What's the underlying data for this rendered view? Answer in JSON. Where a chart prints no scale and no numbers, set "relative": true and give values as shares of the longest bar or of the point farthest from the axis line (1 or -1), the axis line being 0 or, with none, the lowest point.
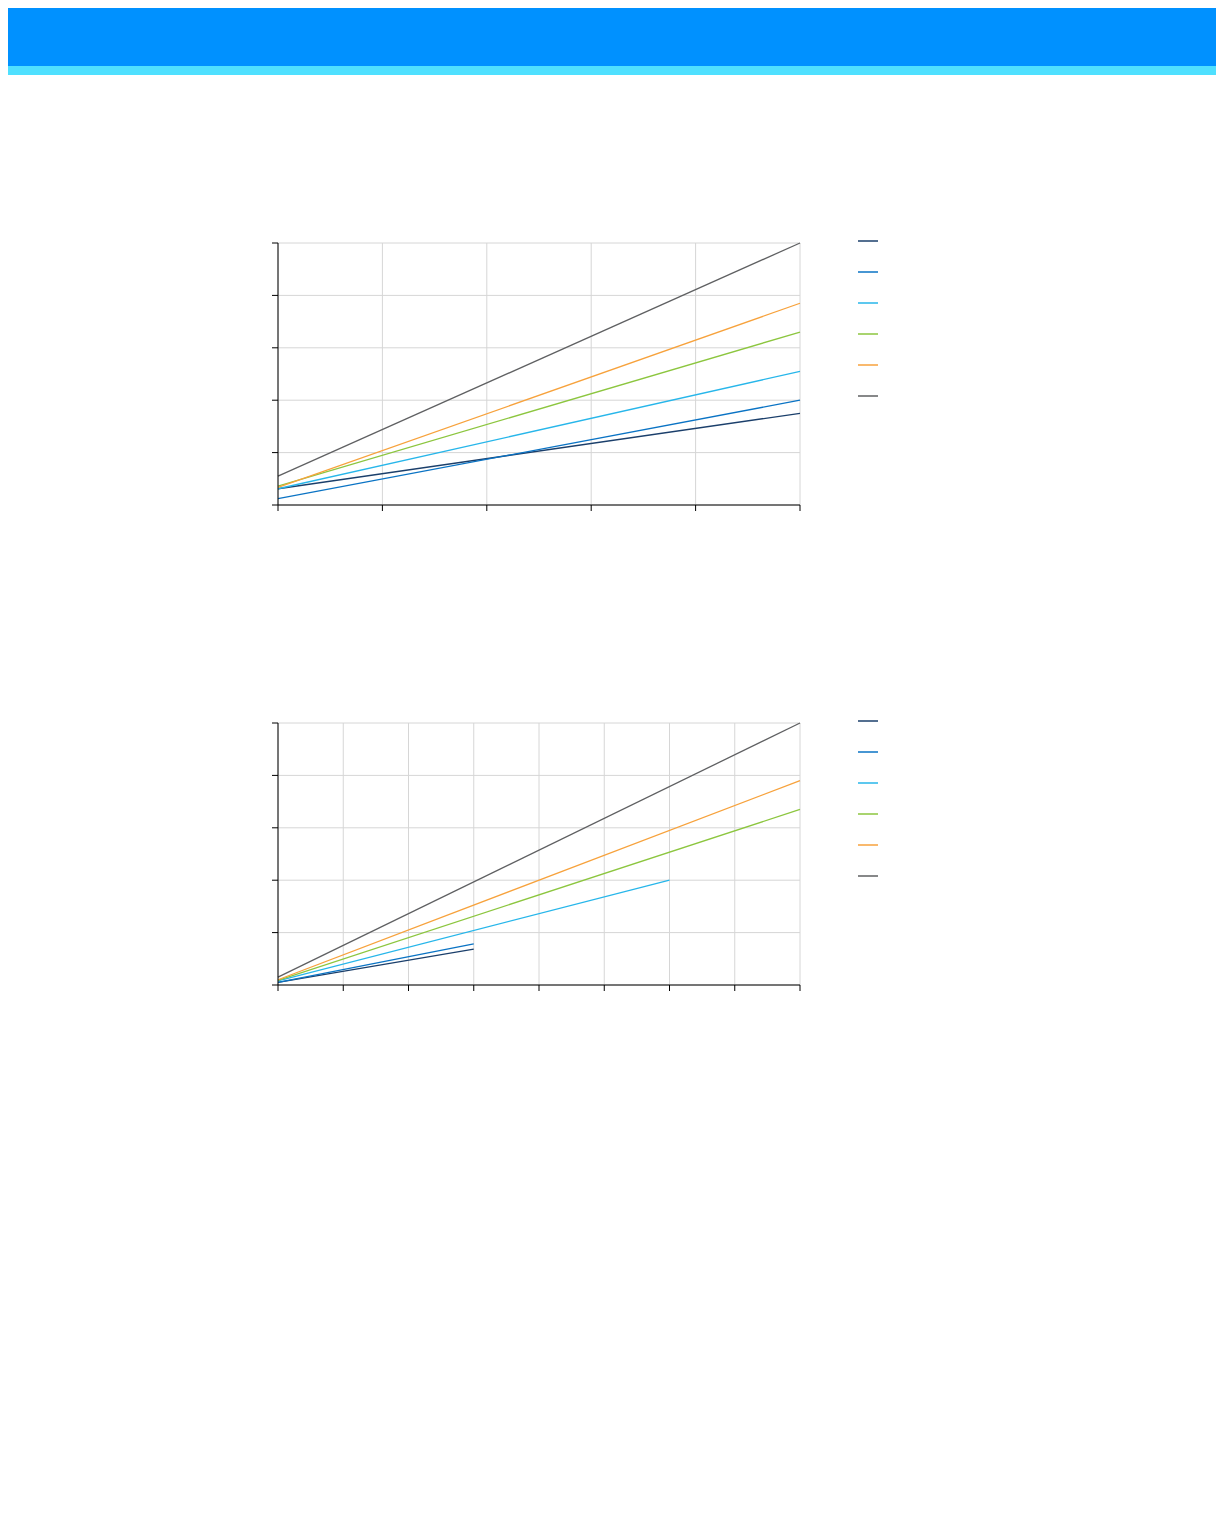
{
  "chart_data": [
    {
      "type": "line",
      "relative": true,
      "categories": [
        null,
        null,
        null,
        null,
        null,
        null
      ],
      "grid": true,
      "line_style": "solid",
      "marker": "none",
      "series": [
        {
          "color": "#1b3f6b",
          "values": [
            0.062,
            null,
            null,
            null,
            null,
            0.35
          ]
        },
        {
          "color": "#0a73c4",
          "values": [
            0.024,
            null,
            null,
            null,
            null,
            0.4
          ]
        },
        {
          "color": "#27b6ea",
          "values": [
            0.062,
            null,
            null,
            null,
            null,
            0.51
          ]
        },
        {
          "color": "#8cc63f",
          "values": [
            0.072,
            null,
            null,
            null,
            null,
            0.66
          ]
        },
        {
          "color": "#f7a23c",
          "values": [
            0.067,
            null,
            null,
            null,
            null,
            0.77
          ]
        },
        {
          "color": "#5f6062",
          "values": [
            0.11,
            null,
            null,
            null,
            null,
            1
          ]
        }
      ]
    },
    {
      "type": "line",
      "relative": true,
      "categories": [
        null,
        null,
        null,
        null,
        null,
        null,
        null,
        null,
        null
      ],
      "grid": true,
      "line_style": "solid",
      "marker": "none",
      "series": [
        {
          "color": "#1b3f6b",
          "values": [
            0.01,
            null,
            null,
            0.137,
            null,
            null,
            null,
            null,
            null
          ]
        },
        {
          "color": "#0a73c4",
          "values": [
            0.01,
            null,
            null,
            0.157,
            null,
            null,
            null,
            null,
            null
          ]
        },
        {
          "color": "#27b6ea",
          "values": [
            0.016,
            null,
            null,
            null,
            null,
            null,
            0.4,
            null,
            null
          ]
        },
        {
          "color": "#8cc63f",
          "values": [
            0.018,
            null,
            null,
            null,
            null,
            null,
            null,
            null,
            0.67
          ]
        },
        {
          "color": "#f7a23c",
          "values": [
            0.02,
            null,
            null,
            null,
            null,
            null,
            null,
            null,
            0.78
          ]
        },
        {
          "color": "#5f6062",
          "values": [
            0.03,
            null,
            null,
            null,
            null,
            null,
            null,
            null,
            1
          ]
        }
      ]
    }
  ]
}
